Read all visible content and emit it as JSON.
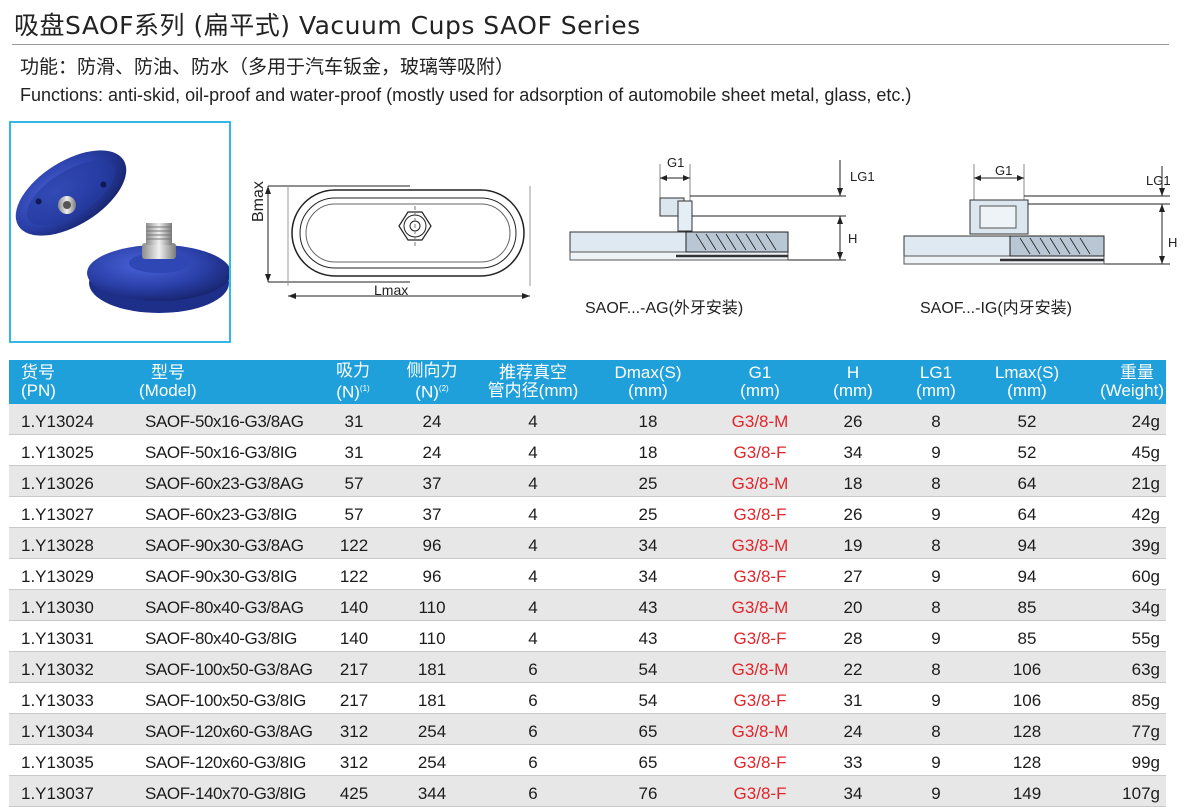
{
  "header": {
    "title": "吸盘SAOF系列 (扁平式) Vacuum Cups SAOF Series",
    "functions_cn": "功能：防滑、防油、防水（多用于汽车钣金，玻璃等吸附）",
    "functions_en": "Functions: anti-skid, oil-proof and water-proof (mostly used for adsorption of automobile sheet metal, glass, etc.)"
  },
  "drawings": {
    "dim_bmax": "Bmax",
    "dim_lmax": "Lmax",
    "dim_g1": "G1",
    "dim_lg1": "LG1",
    "dim_h": "H",
    "caption_ag": "SAOF...-AG(外牙安装)",
    "caption_ig": "SAOF...-IG(内牙安装)"
  },
  "colors": {
    "header_bg": "#1fa0db",
    "row_shade": "#e7e7e7",
    "g1_text": "#e0252b",
    "photo_border": "#35b8e8",
    "cup_blue": "#2a3fa8"
  },
  "table": {
    "headers": [
      {
        "l1": "货号",
        "l2": "(PN)"
      },
      {
        "l1": "型号",
        "l2": "(Model)"
      },
      {
        "l1": "吸力",
        "l2": "(N)",
        "sup": "(1)"
      },
      {
        "l1": "侧向力",
        "l2": "(N)",
        "sup": "(2)"
      },
      {
        "l1": "推荐真空",
        "l2": "管内径(mm)"
      },
      {
        "l1": "Dmax(S)",
        "l2": "(mm)"
      },
      {
        "l1": "G1",
        "l2": "(mm)"
      },
      {
        "l1": "H",
        "l2": "(mm)"
      },
      {
        "l1": "LG1",
        "l2": "(mm)"
      },
      {
        "l1": "Lmax(S)",
        "l2": "(mm)"
      },
      {
        "l1": "重量",
        "l2": "(Weight)"
      }
    ],
    "rows": [
      {
        "pn": "1.Y13024",
        "model": "SAOF-50x16-G3/8AG",
        "force": "31",
        "side": "24",
        "tube": "4",
        "dmax": "18",
        "g1": "G3/8-M",
        "h": "26",
        "lg1": "8",
        "lmax": "52",
        "weight": "24g"
      },
      {
        "pn": "1.Y13025",
        "model": "SAOF-50x16-G3/8IG",
        "force": "31",
        "side": "24",
        "tube": "4",
        "dmax": "18",
        "g1": "G3/8-F",
        "h": "34",
        "lg1": "9",
        "lmax": "52",
        "weight": "45g"
      },
      {
        "pn": "1.Y13026",
        "model": "SAOF-60x23-G3/8AG",
        "force": "57",
        "side": "37",
        "tube": "4",
        "dmax": "25",
        "g1": "G3/8-M",
        "h": "18",
        "lg1": "8",
        "lmax": "64",
        "weight": "21g"
      },
      {
        "pn": "1.Y13027",
        "model": "SAOF-60x23-G3/8IG",
        "force": "57",
        "side": "37",
        "tube": "4",
        "dmax": "25",
        "g1": "G3/8-F",
        "h": "26",
        "lg1": "9",
        "lmax": "64",
        "weight": "42g"
      },
      {
        "pn": "1.Y13028",
        "model": "SAOF-90x30-G3/8AG",
        "force": "122",
        "side": "96",
        "tube": "4",
        "dmax": "34",
        "g1": "G3/8-M",
        "h": "19",
        "lg1": "8",
        "lmax": "94",
        "weight": "39g"
      },
      {
        "pn": "1.Y13029",
        "model": "SAOF-90x30-G3/8IG",
        "force": "122",
        "side": "96",
        "tube": "4",
        "dmax": "34",
        "g1": "G3/8-F",
        "h": "27",
        "lg1": "9",
        "lmax": "94",
        "weight": "60g"
      },
      {
        "pn": "1.Y13030",
        "model": "SAOF-80x40-G3/8AG",
        "force": "140",
        "side": "110",
        "tube": "4",
        "dmax": "43",
        "g1": "G3/8-M",
        "h": "20",
        "lg1": "8",
        "lmax": "85",
        "weight": "34g"
      },
      {
        "pn": "1.Y13031",
        "model": "SAOF-80x40-G3/8IG",
        "force": "140",
        "side": "110",
        "tube": "4",
        "dmax": "43",
        "g1": "G3/8-F",
        "h": "28",
        "lg1": "9",
        "lmax": "85",
        "weight": "55g"
      },
      {
        "pn": "1.Y13032",
        "model": "SAOF-100x50-G3/8AG",
        "force": "217",
        "side": "181",
        "tube": "6",
        "dmax": "54",
        "g1": "G3/8-M",
        "h": "22",
        "lg1": "8",
        "lmax": "106",
        "weight": "63g"
      },
      {
        "pn": "1.Y13033",
        "model": "SAOF-100x50-G3/8IG",
        "force": "217",
        "side": "181",
        "tube": "6",
        "dmax": "54",
        "g1": "G3/8-F",
        "h": "31",
        "lg1": "9",
        "lmax": "106",
        "weight": "85g"
      },
      {
        "pn": "1.Y13034",
        "model": "SAOF-120x60-G3/8AG",
        "force": "312",
        "side": "254",
        "tube": "6",
        "dmax": "65",
        "g1": "G3/8-M",
        "h": "24",
        "lg1": "8",
        "lmax": "128",
        "weight": "77g"
      },
      {
        "pn": "1.Y13035",
        "model": "SAOF-120x60-G3/8IG",
        "force": "312",
        "side": "254",
        "tube": "6",
        "dmax": "65",
        "g1": "G3/8-F",
        "h": "33",
        "lg1": "9",
        "lmax": "128",
        "weight": "99g"
      },
      {
        "pn": "1.Y13037",
        "model": "SAOF-140x70-G3/8IG",
        "force": "425",
        "side": "344",
        "tube": "6",
        "dmax": "76",
        "g1": "G3/8-F",
        "h": "34",
        "lg1": "9",
        "lmax": "149",
        "weight": "107g"
      }
    ]
  }
}
